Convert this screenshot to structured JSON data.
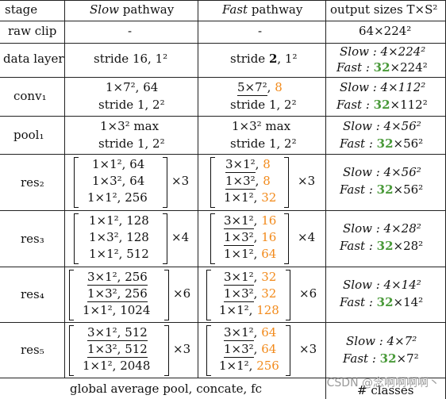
{
  "header": {
    "stage": "stage",
    "slow_italic": "Slow",
    "slow_rest": " pathway",
    "fast_italic": "Fast",
    "fast_rest": " pathway",
    "output": "output sizes T×S²"
  },
  "rows": {
    "raw": {
      "stage": "raw clip",
      "slow": "-",
      "fast": "-",
      "out": "64×224²"
    },
    "data": {
      "stage": "data layer",
      "slow": "stride 16, 1²",
      "fast_a": "stride ",
      "fast_b": "2",
      "fast_c": ", 1²",
      "out_slow": "Slow : 4×224²",
      "out_fast_a": "Fast : ",
      "out_fast_b": "32",
      "out_fast_c": "×224²"
    },
    "conv1": {
      "stage": "conv₁",
      "slow1": "1×7², 64",
      "slow2": "stride 1, 2²",
      "fast1a": "5×7²",
      "fast1b": ", ",
      "fast1c": "8",
      "fast2": "stride 1, 2²",
      "out_slow": "Slow : 4×112²",
      "out_fast_a": "Fast : ",
      "out_fast_b": "32",
      "out_fast_c": "×112²"
    },
    "pool1": {
      "stage": "pool₁",
      "slow1": "1×3² max",
      "slow2": "stride 1, 2²",
      "fast1": "1×3² max",
      "fast2": "stride 1, 2²",
      "out_slow": "Slow : 4×56²",
      "out_fast_a": "Fast : ",
      "out_fast_b": "32",
      "out_fast_c": "×56²"
    },
    "res2": {
      "stage": "res₂",
      "slow": [
        "1×1², 64",
        "1×3², 64",
        "1×1², 256"
      ],
      "fast_k": [
        "3×1²",
        "1×3²",
        "1×1²"
      ],
      "fast_c": [
        "8",
        "8",
        "32"
      ],
      "mult": "×3",
      "out_slow": "Slow : 4×56²",
      "out_fast_a": "Fast : ",
      "out_fast_b": "32",
      "out_fast_c": "×56²"
    },
    "res3": {
      "stage": "res₃",
      "slow": [
        "1×1², 128",
        "1×3², 128",
        "1×1², 512"
      ],
      "fast_k": [
        "3×1²",
        "1×3²",
        "1×1²"
      ],
      "fast_c": [
        "16",
        "16",
        "64"
      ],
      "mult": "×4",
      "out_slow": "Slow : 4×28²",
      "out_fast_a": "Fast : ",
      "out_fast_b": "32",
      "out_fast_c": "×28²"
    },
    "res4": {
      "stage": "res₄",
      "slow": [
        "3×1², 256",
        "1×3², 256",
        "1×1², 1024"
      ],
      "fast_k": [
        "3×1²",
        "1×3²",
        "1×1²"
      ],
      "fast_c": [
        "32",
        "32",
        "128"
      ],
      "mult": "×6",
      "out_slow": "Slow : 4×14²",
      "out_fast_a": "Fast : ",
      "out_fast_b": "32",
      "out_fast_c": "×14²"
    },
    "res5": {
      "stage": "res₅",
      "slow": [
        "3×1², 512",
        "1×3², 512",
        "1×1², 2048"
      ],
      "fast_k": [
        "3×1²",
        "1×3²",
        "1×1²"
      ],
      "fast_c": [
        "64",
        "64",
        "256"
      ],
      "mult": "×3",
      "out_slow": "Slow : 4×7²",
      "out_fast_a": "Fast : ",
      "out_fast_b": "32",
      "out_fast_c": "×7²"
    },
    "final": {
      "text": "global average pool, concate, fc",
      "out": "# classes"
    }
  },
  "watermark": "CSDN @念啊啊啊啊丶",
  "colors": {
    "orange": "#f28a1b",
    "green": "#4a9a3a"
  }
}
